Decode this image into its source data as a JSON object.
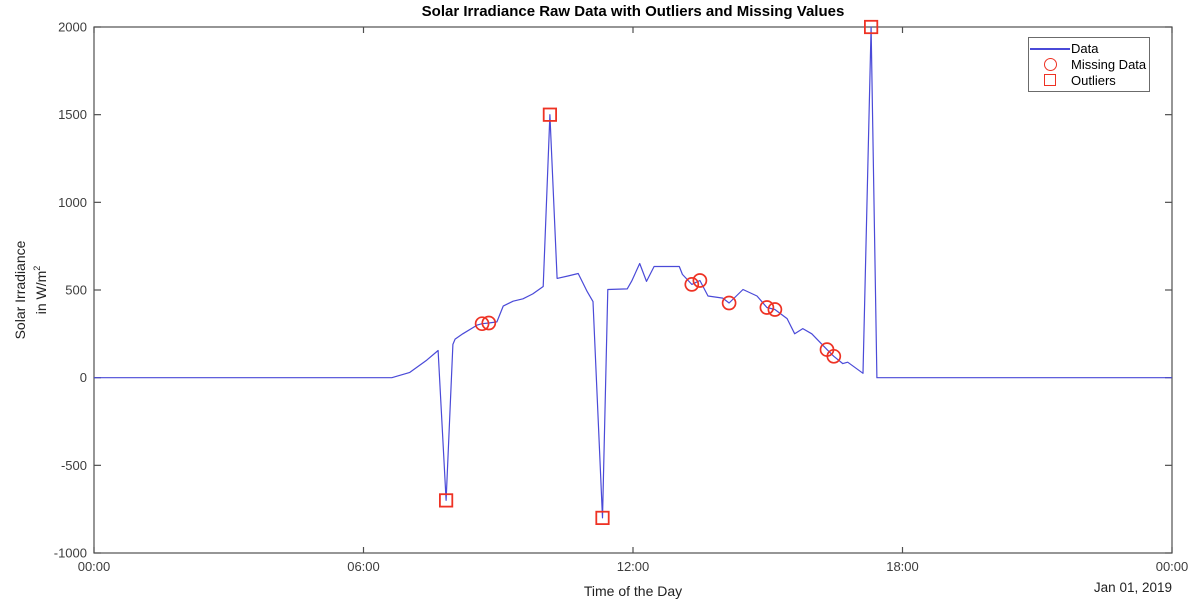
{
  "figure": {
    "title": "Solar Irradiance Raw Data with Outliers and Missing Values",
    "xlabel": "Time of the Day",
    "ylabel_line1": "Solar Irradiance",
    "ylabel_line2_base": "in W/m",
    "ylabel_sup": "2",
    "date_annotation": "Jan 01, 2019"
  },
  "legend": {
    "items": [
      {
        "label": "Data",
        "marker": "line-sample-icon"
      },
      {
        "label": "Missing Data",
        "marker": "circle-marker-icon"
      },
      {
        "label": "Outliers",
        "marker": "square-marker-icon"
      }
    ]
  },
  "chart_data": {
    "type": "line",
    "title": "Solar Irradiance Raw Data with Outliers and Missing Values",
    "xlabel": "Time of the Day",
    "ylabel": "Solar Irradiance in W/m^2",
    "x_unit": "hours of day",
    "xlim": [
      0,
      24
    ],
    "ylim": [
      -1000,
      2000
    ],
    "grid": false,
    "legend_position": "top-right",
    "xticks": [
      {
        "h": 0,
        "label": "00:00"
      },
      {
        "h": 6,
        "label": "06:00"
      },
      {
        "h": 12,
        "label": "12:00"
      },
      {
        "h": 18,
        "label": "18:00"
      },
      {
        "h": 24,
        "label": "00:00"
      }
    ],
    "yticks": [
      {
        "v": -1000,
        "label": "-1000"
      },
      {
        "v": -500,
        "label": "-500"
      },
      {
        "v": 0,
        "label": "0"
      },
      {
        "v": 500,
        "label": "500"
      },
      {
        "v": 1000,
        "label": "1000"
      },
      {
        "v": 1500,
        "label": "1500"
      },
      {
        "v": 2000,
        "label": "2000"
      }
    ],
    "colors": {
      "line": "#4a4ad8",
      "marker": "#ee3224",
      "axis": "#4f4f4f",
      "tick_text": "#3d3d3d"
    },
    "series": [
      {
        "name": "Data",
        "points": [
          [
            0,
            0
          ],
          [
            6.63,
            0
          ],
          [
            7.03,
            30
          ],
          [
            7.41,
            100
          ],
          [
            7.66,
            155
          ],
          [
            7.84,
            -700
          ],
          [
            7.99,
            190
          ],
          [
            8.04,
            220
          ],
          [
            8.21,
            250
          ],
          [
            8.53,
            300
          ],
          [
            8.64,
            308
          ],
          [
            8.79,
            312
          ],
          [
            8.97,
            318
          ],
          [
            9.11,
            408
          ],
          [
            9.33,
            436
          ],
          [
            9.55,
            450
          ],
          [
            9.77,
            478
          ],
          [
            10.0,
            520
          ],
          [
            10.15,
            1500
          ],
          [
            10.31,
            566
          ],
          [
            10.55,
            580
          ],
          [
            10.78,
            594
          ],
          [
            10.98,
            491
          ],
          [
            11.11,
            434
          ],
          [
            11.32,
            -800
          ],
          [
            11.44,
            503
          ],
          [
            11.87,
            506
          ],
          [
            11.97,
            551
          ],
          [
            12.15,
            651
          ],
          [
            12.3,
            549
          ],
          [
            12.47,
            634
          ],
          [
            13.03,
            634
          ],
          [
            13.1,
            589
          ],
          [
            13.31,
            532
          ],
          [
            13.49,
            554
          ],
          [
            13.67,
            466
          ],
          [
            14.0,
            454
          ],
          [
            14.14,
            426
          ],
          [
            14.45,
            503
          ],
          [
            14.76,
            466
          ],
          [
            14.98,
            400
          ],
          [
            15.16,
            389
          ],
          [
            15.43,
            337
          ],
          [
            15.6,
            250
          ],
          [
            15.78,
            280
          ],
          [
            15.98,
            250
          ],
          [
            16.32,
            160
          ],
          [
            16.47,
            122
          ],
          [
            16.67,
            80
          ],
          [
            16.78,
            88
          ],
          [
            17.12,
            25
          ],
          [
            17.3,
            2000
          ],
          [
            17.43,
            0
          ],
          [
            24,
            0
          ]
        ]
      }
    ],
    "missing_data_markers": {
      "name": "Missing Data",
      "points": [
        [
          8.64,
          308
        ],
        [
          8.79,
          312
        ],
        [
          13.31,
          532
        ],
        [
          13.49,
          554
        ],
        [
          14.14,
          426
        ],
        [
          14.98,
          400
        ],
        [
          15.16,
          389
        ],
        [
          16.32,
          160
        ],
        [
          16.47,
          122
        ]
      ]
    },
    "outlier_markers": {
      "name": "Outliers",
      "points": [
        [
          7.84,
          -700
        ],
        [
          10.15,
          1500
        ],
        [
          11.32,
          -800
        ],
        [
          17.3,
          2000
        ]
      ]
    }
  }
}
